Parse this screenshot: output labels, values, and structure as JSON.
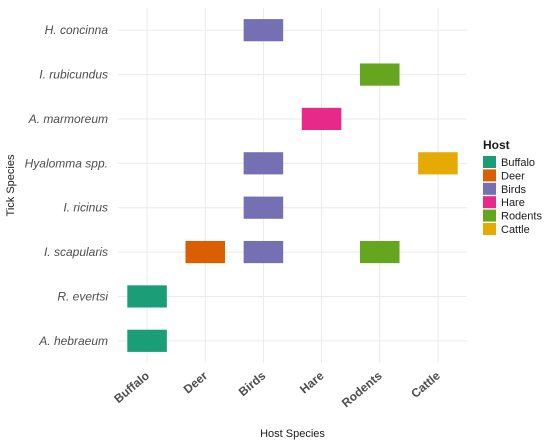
{
  "chart_data": {
    "type": "heatmap",
    "xlabel": "Host Species",
    "ylabel": "Tick Species",
    "x_categories": [
      "Buffalo",
      "Deer",
      "Birds",
      "Hare",
      "Rodents",
      "Cattle"
    ],
    "y_categories": [
      "H. concinna",
      "I. rubicundus",
      "A. marmoreum",
      "Hyalomma spp.",
      "I. ricinus",
      "I. scapularis",
      "R. evertsi",
      "A. hebraeum"
    ],
    "cells": [
      {
        "tick": "H. concinna",
        "host": "Birds"
      },
      {
        "tick": "I. rubicundus",
        "host": "Rodents"
      },
      {
        "tick": "A. marmoreum",
        "host": "Hare"
      },
      {
        "tick": "Hyalomma spp.",
        "host": "Birds"
      },
      {
        "tick": "Hyalomma spp.",
        "host": "Cattle"
      },
      {
        "tick": "I. ricinus",
        "host": "Birds"
      },
      {
        "tick": "I. scapularis",
        "host": "Deer"
      },
      {
        "tick": "I. scapularis",
        "host": "Birds"
      },
      {
        "tick": "I. scapularis",
        "host": "Rodents"
      },
      {
        "tick": "R. evertsi",
        "host": "Buffalo"
      },
      {
        "tick": "A. hebraeum",
        "host": "Buffalo"
      }
    ],
    "legend": {
      "title": "Host",
      "position": "right",
      "entries": [
        {
          "label": "Buffalo",
          "color": "#1b9e77"
        },
        {
          "label": "Deer",
          "color": "#d95f02"
        },
        {
          "label": "Birds",
          "color": "#7570b3"
        },
        {
          "label": "Hare",
          "color": "#e7298a"
        },
        {
          "label": "Rodents",
          "color": "#66a61e"
        },
        {
          "label": "Cattle",
          "color": "#e6ab02"
        }
      ]
    },
    "grid": true
  }
}
